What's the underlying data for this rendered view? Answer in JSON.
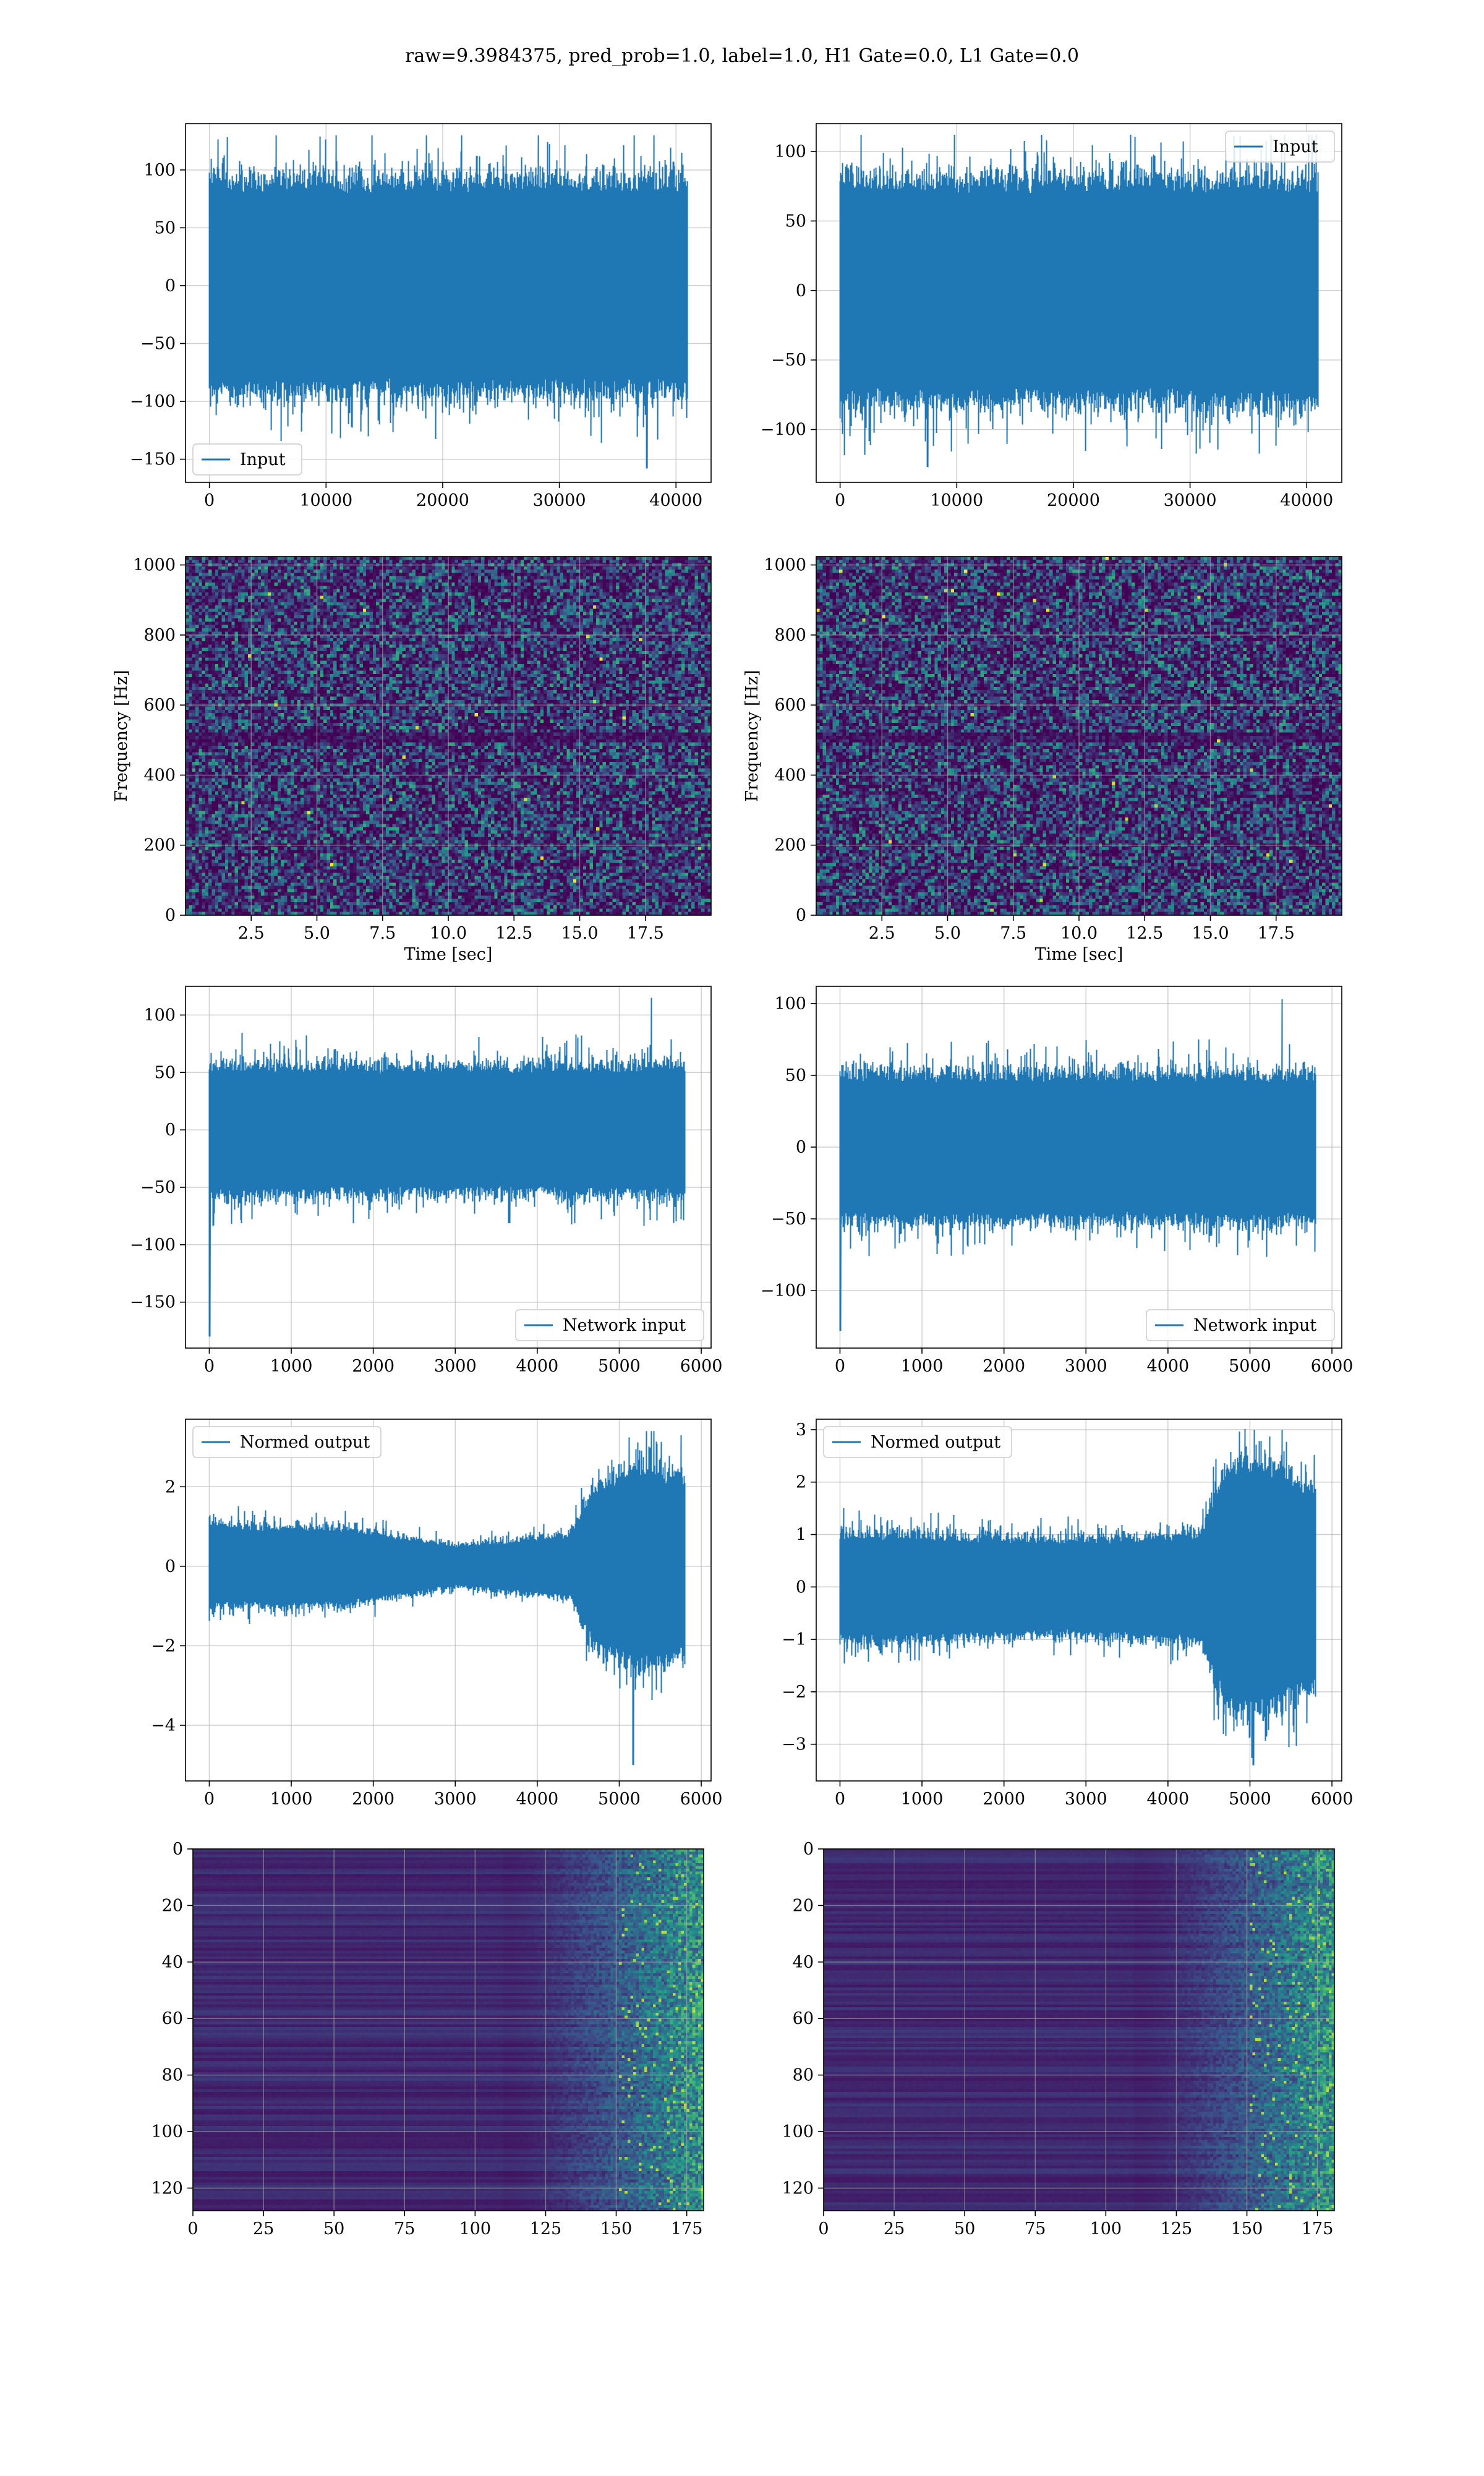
{
  "figure": {
    "title": "raw=9.3984375, pred_prob=1.0, label=1.0, H1 Gate=0.0, L1 Gate=0.0",
    "background": "#ffffff",
    "line_color": "#1f77b4",
    "grid_color": "#b0b0b0"
  },
  "chart_data": [
    {
      "id": "input-h1",
      "type": "line",
      "row": 0,
      "col": 0,
      "legend": "Input",
      "legend_loc": "lower-left",
      "xlim": [
        -2048,
        43008
      ],
      "ylim": [
        -170,
        140
      ],
      "xticks": [
        0,
        10000,
        20000,
        30000,
        40000
      ],
      "yticks": [
        -150,
        -100,
        -50,
        0,
        50,
        100
      ],
      "xlabel": "",
      "ylabel": "",
      "signal": {
        "n": 40960,
        "envelope": [
          [
            0,
            80
          ],
          [
            20480,
            80
          ],
          [
            40960,
            80
          ]
        ],
        "max": 130,
        "min": -158,
        "min_at": 37500
      }
    },
    {
      "id": "input-l1",
      "type": "line",
      "row": 0,
      "col": 1,
      "legend": "Input",
      "legend_loc": "upper-right",
      "xlim": [
        -2048,
        43008
      ],
      "ylim": [
        -138,
        120
      ],
      "xticks": [
        0,
        10000,
        20000,
        30000,
        40000
      ],
      "yticks": [
        -100,
        -50,
        0,
        50,
        100
      ],
      "xlabel": "",
      "ylabel": "",
      "signal": {
        "n": 40960,
        "envelope": [
          [
            0,
            70
          ],
          [
            20480,
            70
          ],
          [
            40960,
            70
          ]
        ],
        "max": 112,
        "min": -127,
        "min_at": 7500
      }
    },
    {
      "id": "spectrogram-h1",
      "type": "heatmap",
      "row": 1,
      "col": 0,
      "xlim": [
        0,
        20
      ],
      "ylim": [
        0,
        1024
      ],
      "xticks": [
        2.5,
        5.0,
        7.5,
        10.0,
        12.5,
        15.0,
        17.5
      ],
      "yticks": [
        0,
        200,
        400,
        600,
        800,
        1000
      ],
      "xlabel": "Time [sec]",
      "ylabel": "Frequency [Hz]",
      "colormap": "viridis",
      "y_inverted": false
    },
    {
      "id": "spectrogram-l1",
      "type": "heatmap",
      "row": 1,
      "col": 1,
      "xlim": [
        0,
        20
      ],
      "ylim": [
        0,
        1024
      ],
      "xticks": [
        2.5,
        5.0,
        7.5,
        10.0,
        12.5,
        15.0,
        17.5
      ],
      "yticks": [
        0,
        200,
        400,
        600,
        800,
        1000
      ],
      "xlabel": "Time [sec]",
      "ylabel": "Frequency [Hz]",
      "colormap": "viridis",
      "y_inverted": false
    },
    {
      "id": "network-input-h1",
      "type": "line",
      "row": 2,
      "col": 0,
      "legend": "Network input",
      "legend_loc": "lower-right",
      "xlim": [
        -290,
        6120
      ],
      "ylim": [
        -190,
        125
      ],
      "xticks": [
        0,
        1000,
        2000,
        3000,
        4000,
        5000,
        6000
      ],
      "yticks": [
        -150,
        -100,
        -50,
        0,
        50,
        100
      ],
      "xlabel": "",
      "ylabel": "",
      "signal": {
        "n": 5800,
        "envelope": [
          [
            0,
            50
          ],
          [
            2900,
            48
          ],
          [
            5800,
            50
          ]
        ],
        "max": 115,
        "min": -180,
        "min_at": 5
      }
    },
    {
      "id": "network-input-l1",
      "type": "line",
      "row": 2,
      "col": 1,
      "legend": "Network input",
      "legend_loc": "lower-right",
      "xlim": [
        -290,
        6120
      ],
      "ylim": [
        -140,
        112
      ],
      "xticks": [
        0,
        1000,
        2000,
        3000,
        4000,
        5000,
        6000
      ],
      "yticks": [
        -100,
        -50,
        0,
        50,
        100
      ],
      "xlabel": "",
      "ylabel": "",
      "signal": {
        "n": 5800,
        "envelope": [
          [
            0,
            45
          ],
          [
            2900,
            45
          ],
          [
            5800,
            45
          ]
        ],
        "max": 103,
        "min": -128,
        "min_at": 5
      }
    },
    {
      "id": "normed-output-h1",
      "type": "line",
      "row": 3,
      "col": 0,
      "legend": "Normed output",
      "legend_loc": "upper-left",
      "xlim": [
        -290,
        6120
      ],
      "ylim": [
        -5.4,
        3.7
      ],
      "xticks": [
        0,
        1000,
        2000,
        3000,
        4000,
        5000,
        6000
      ],
      "yticks": [
        -4,
        -2,
        0,
        2
      ],
      "xlabel": "",
      "ylabel": "",
      "signal": {
        "n": 5800,
        "envelope": [
          [
            0,
            0.9
          ],
          [
            1700,
            0.85
          ],
          [
            3000,
            0.45
          ],
          [
            4400,
            0.7
          ],
          [
            4700,
            1.8
          ],
          [
            5200,
            2.2
          ],
          [
            5800,
            2.0
          ]
        ],
        "max": 3.4,
        "min": -5.0,
        "min_at": 5170
      }
    },
    {
      "id": "normed-output-l1",
      "type": "line",
      "row": 3,
      "col": 1,
      "legend": "Normed output",
      "legend_loc": "upper-left",
      "xlim": [
        -290,
        6120
      ],
      "ylim": [
        -3.7,
        3.2
      ],
      "xticks": [
        0,
        1000,
        2000,
        3000,
        4000,
        5000,
        6000
      ],
      "yticks": [
        -3,
        -2,
        -1,
        0,
        1,
        2,
        3
      ],
      "xlabel": "",
      "ylabel": "",
      "signal": {
        "n": 5800,
        "envelope": [
          [
            0,
            0.9
          ],
          [
            2900,
            0.8
          ],
          [
            4400,
            0.9
          ],
          [
            4700,
            2.0
          ],
          [
            5200,
            2.1
          ],
          [
            5800,
            1.6
          ]
        ],
        "max": 3.0,
        "min": -3.4,
        "min_at": 5040
      }
    },
    {
      "id": "feature-map-h1",
      "type": "heatmap",
      "row": 4,
      "col": 0,
      "xlim": [
        0,
        181
      ],
      "ylim": [
        128,
        0
      ],
      "xticks": [
        0,
        25,
        50,
        75,
        100,
        125,
        150,
        175
      ],
      "yticks": [
        0,
        20,
        40,
        60,
        80,
        100,
        120
      ],
      "xlabel": "",
      "ylabel": "",
      "colormap": "viridis",
      "y_inverted": true
    },
    {
      "id": "feature-map-l1",
      "type": "heatmap",
      "row": 4,
      "col": 1,
      "xlim": [
        0,
        181
      ],
      "ylim": [
        128,
        0
      ],
      "xticks": [
        0,
        25,
        50,
        75,
        100,
        125,
        150,
        175
      ],
      "yticks": [
        0,
        20,
        40,
        60,
        80,
        100,
        120
      ],
      "xlabel": "",
      "ylabel": "",
      "colormap": "viridis",
      "y_inverted": true
    }
  ]
}
